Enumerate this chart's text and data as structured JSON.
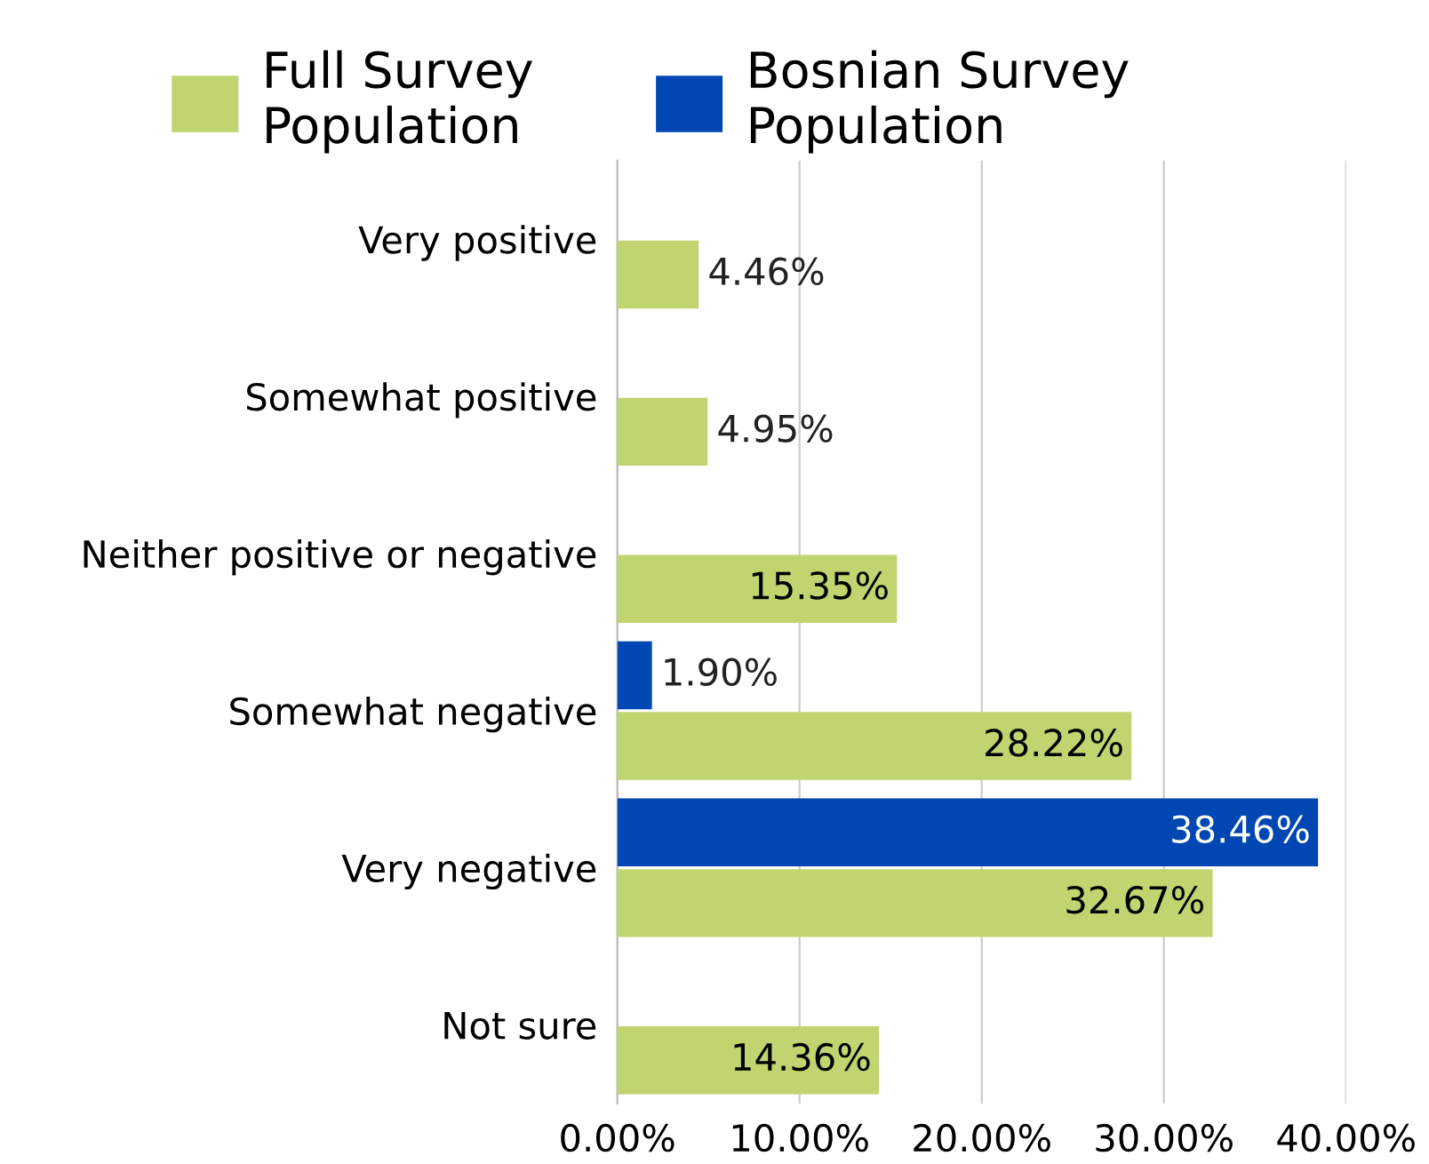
{
  "chart_data": {
    "type": "bar",
    "orientation": "horizontal",
    "categories": [
      "Very positive",
      "Somewhat positive",
      "Neither positive or negative",
      "Somewhat negative",
      "Very negative",
      "Not sure"
    ],
    "series": [
      {
        "name": "Full Survey Population",
        "color": "#c0d470",
        "values": [
          4.46,
          4.95,
          15.35,
          28.22,
          32.67,
          14.36
        ],
        "value_labels": [
          "4.46%",
          "4.95%",
          "15.35%",
          "28.22%",
          "32.67%",
          "14.36%"
        ]
      },
      {
        "name": "Bosnian Survey Population",
        "color": "#0047b3",
        "values": [
          null,
          null,
          null,
          1.9,
          38.46,
          null
        ],
        "value_labels": [
          null,
          null,
          null,
          "1.90%",
          "38.46%",
          null
        ]
      }
    ],
    "xlim": [
      0,
      40
    ],
    "xticks": [
      {
        "value": 0,
        "label": "0.00%"
      },
      {
        "value": 10,
        "label": "10.00%"
      },
      {
        "value": 20,
        "label": "20.00%"
      },
      {
        "value": 30,
        "label": "30.00%"
      },
      {
        "value": 40,
        "label": "40.00%"
      }
    ],
    "grid": "x",
    "legend": "top"
  }
}
